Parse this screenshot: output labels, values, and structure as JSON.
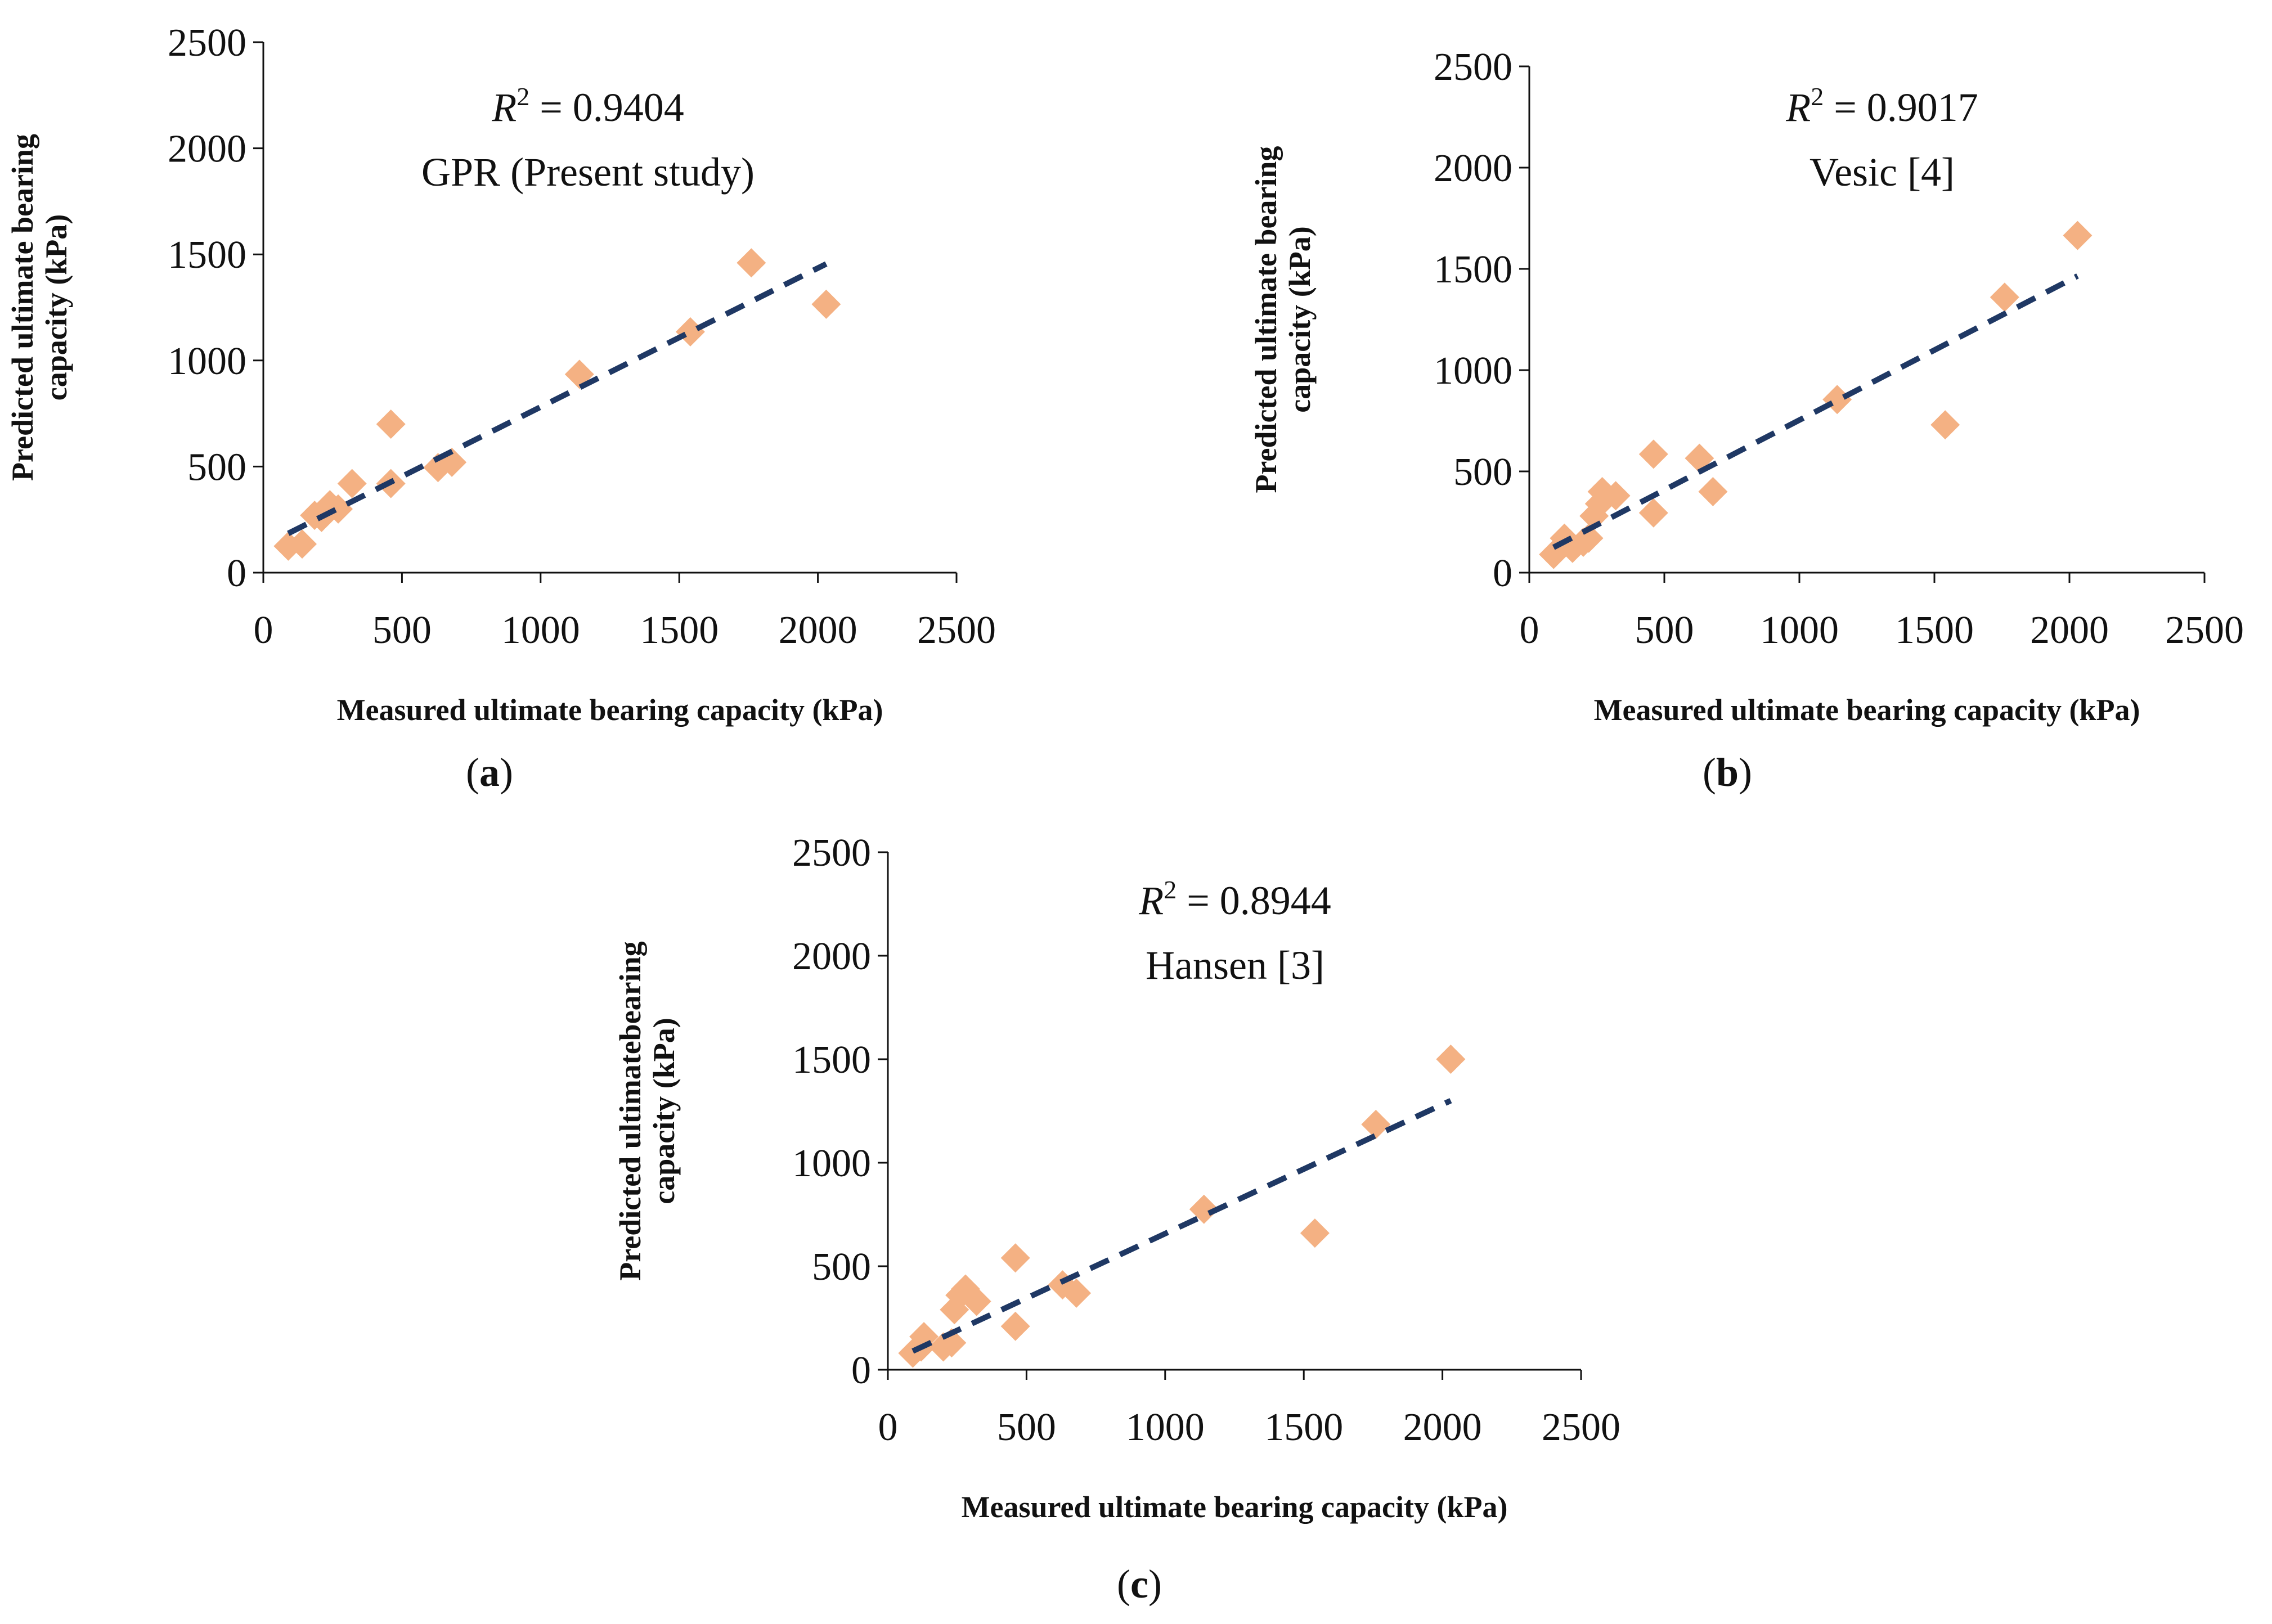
{
  "colors": {
    "marker": "#f4b183",
    "trendline": "#1f3864",
    "axis": "#111111"
  },
  "chart_data": [
    {
      "type": "scatter",
      "panel": "a",
      "caption": {
        "open": "(",
        "letter": "a",
        "close": ")"
      },
      "xlabel": "Measured ultimate bearing capacity (kPa)",
      "ylabel_lines": [
        "Predicted ultimate  bearing",
        "capacity  (kPa)"
      ],
      "r2": {
        "symbol": "R",
        "sup": "2",
        "value": " = 0.9404"
      },
      "method": "GPR (Present study)",
      "xlim": [
        0,
        2500
      ],
      "ylim": [
        0,
        2500
      ],
      "xticks": [
        "0",
        "500",
        "1000",
        "1500",
        "2000",
        "2500"
      ],
      "yticks": [
        "0",
        "500",
        "1000",
        "1500",
        "2000",
        "2500"
      ],
      "marker": "diamond",
      "grid": false,
      "points": [
        [
          90,
          125
        ],
        [
          140,
          135
        ],
        [
          185,
          270
        ],
        [
          210,
          260
        ],
        [
          240,
          320
        ],
        [
          270,
          300
        ],
        [
          320,
          420
        ],
        [
          460,
          420
        ],
        [
          460,
          700
        ],
        [
          630,
          495
        ],
        [
          680,
          520
        ],
        [
          1140,
          935
        ],
        [
          1540,
          1135
        ],
        [
          1760,
          1460
        ],
        [
          2030,
          1265
        ]
      ],
      "trendline": {
        "style": "dashed",
        "x": [
          90,
          2030
        ],
        "y": [
          185,
          1455
        ]
      }
    },
    {
      "type": "scatter",
      "panel": "b",
      "caption": {
        "open": "(",
        "letter": "b",
        "close": ")"
      },
      "xlabel": "Measured ultimate bearing capacity (kPa)",
      "ylabel_lines": [
        "Predicted ultimate bearing",
        "capacity  (kPa)"
      ],
      "r2": {
        "symbol": "R",
        "sup": "2",
        "value": " = 0.9017"
      },
      "method": "Vesic [4]",
      "xlim": [
        0,
        2500
      ],
      "ylim": [
        0,
        2500
      ],
      "xticks": [
        "0",
        "500",
        "1000",
        "1500",
        "2000",
        "2500"
      ],
      "yticks": [
        "0",
        "500",
        "1000",
        "1500",
        "2000",
        "2500"
      ],
      "marker": "diamond",
      "grid": false,
      "points": [
        [
          90,
          90
        ],
        [
          130,
          170
        ],
        [
          160,
          120
        ],
        [
          200,
          150
        ],
        [
          220,
          170
        ],
        [
          240,
          280
        ],
        [
          260,
          340
        ],
        [
          270,
          400
        ],
        [
          320,
          380
        ],
        [
          460,
          295
        ],
        [
          460,
          585
        ],
        [
          630,
          565
        ],
        [
          680,
          400
        ],
        [
          1140,
          855
        ],
        [
          1540,
          730
        ],
        [
          1760,
          1360
        ],
        [
          2030,
          1665
        ]
      ],
      "trendline": {
        "style": "dashed",
        "x": [
          90,
          2030
        ],
        "y": [
          125,
          1465
        ]
      }
    },
    {
      "type": "scatter",
      "panel": "c",
      "caption": {
        "open": "(",
        "letter": "c",
        "close": ")"
      },
      "xlabel": "Measured ultimate bearing capacity (kPa)",
      "ylabel_lines": [
        "Predicted ultimatebearing",
        "capacity  (kPa)"
      ],
      "r2": {
        "symbol": "R",
        "sup": "2",
        "value": " = 0.8944"
      },
      "method": "Hansen [3]",
      "xlim": [
        0,
        2500
      ],
      "ylim": [
        0,
        2500
      ],
      "xticks": [
        "0",
        "500",
        "1000",
        "1500",
        "2000",
        "2500"
      ],
      "yticks": [
        "0",
        "500",
        "1000",
        "1500",
        "2000",
        "2500"
      ],
      "marker": "diamond",
      "grid": false,
      "points": [
        [
          90,
          80
        ],
        [
          120,
          110
        ],
        [
          130,
          160
        ],
        [
          200,
          110
        ],
        [
          230,
          130
        ],
        [
          240,
          290
        ],
        [
          260,
          360
        ],
        [
          280,
          390
        ],
        [
          320,
          330
        ],
        [
          460,
          540
        ],
        [
          460,
          210
        ],
        [
          630,
          410
        ],
        [
          680,
          370
        ],
        [
          1140,
          775
        ],
        [
          1540,
          660
        ],
        [
          1760,
          1185
        ],
        [
          2030,
          1500
        ]
      ],
      "trendline": {
        "style": "dashed",
        "x": [
          90,
          2030
        ],
        "y": [
          90,
          1300
        ]
      }
    }
  ]
}
